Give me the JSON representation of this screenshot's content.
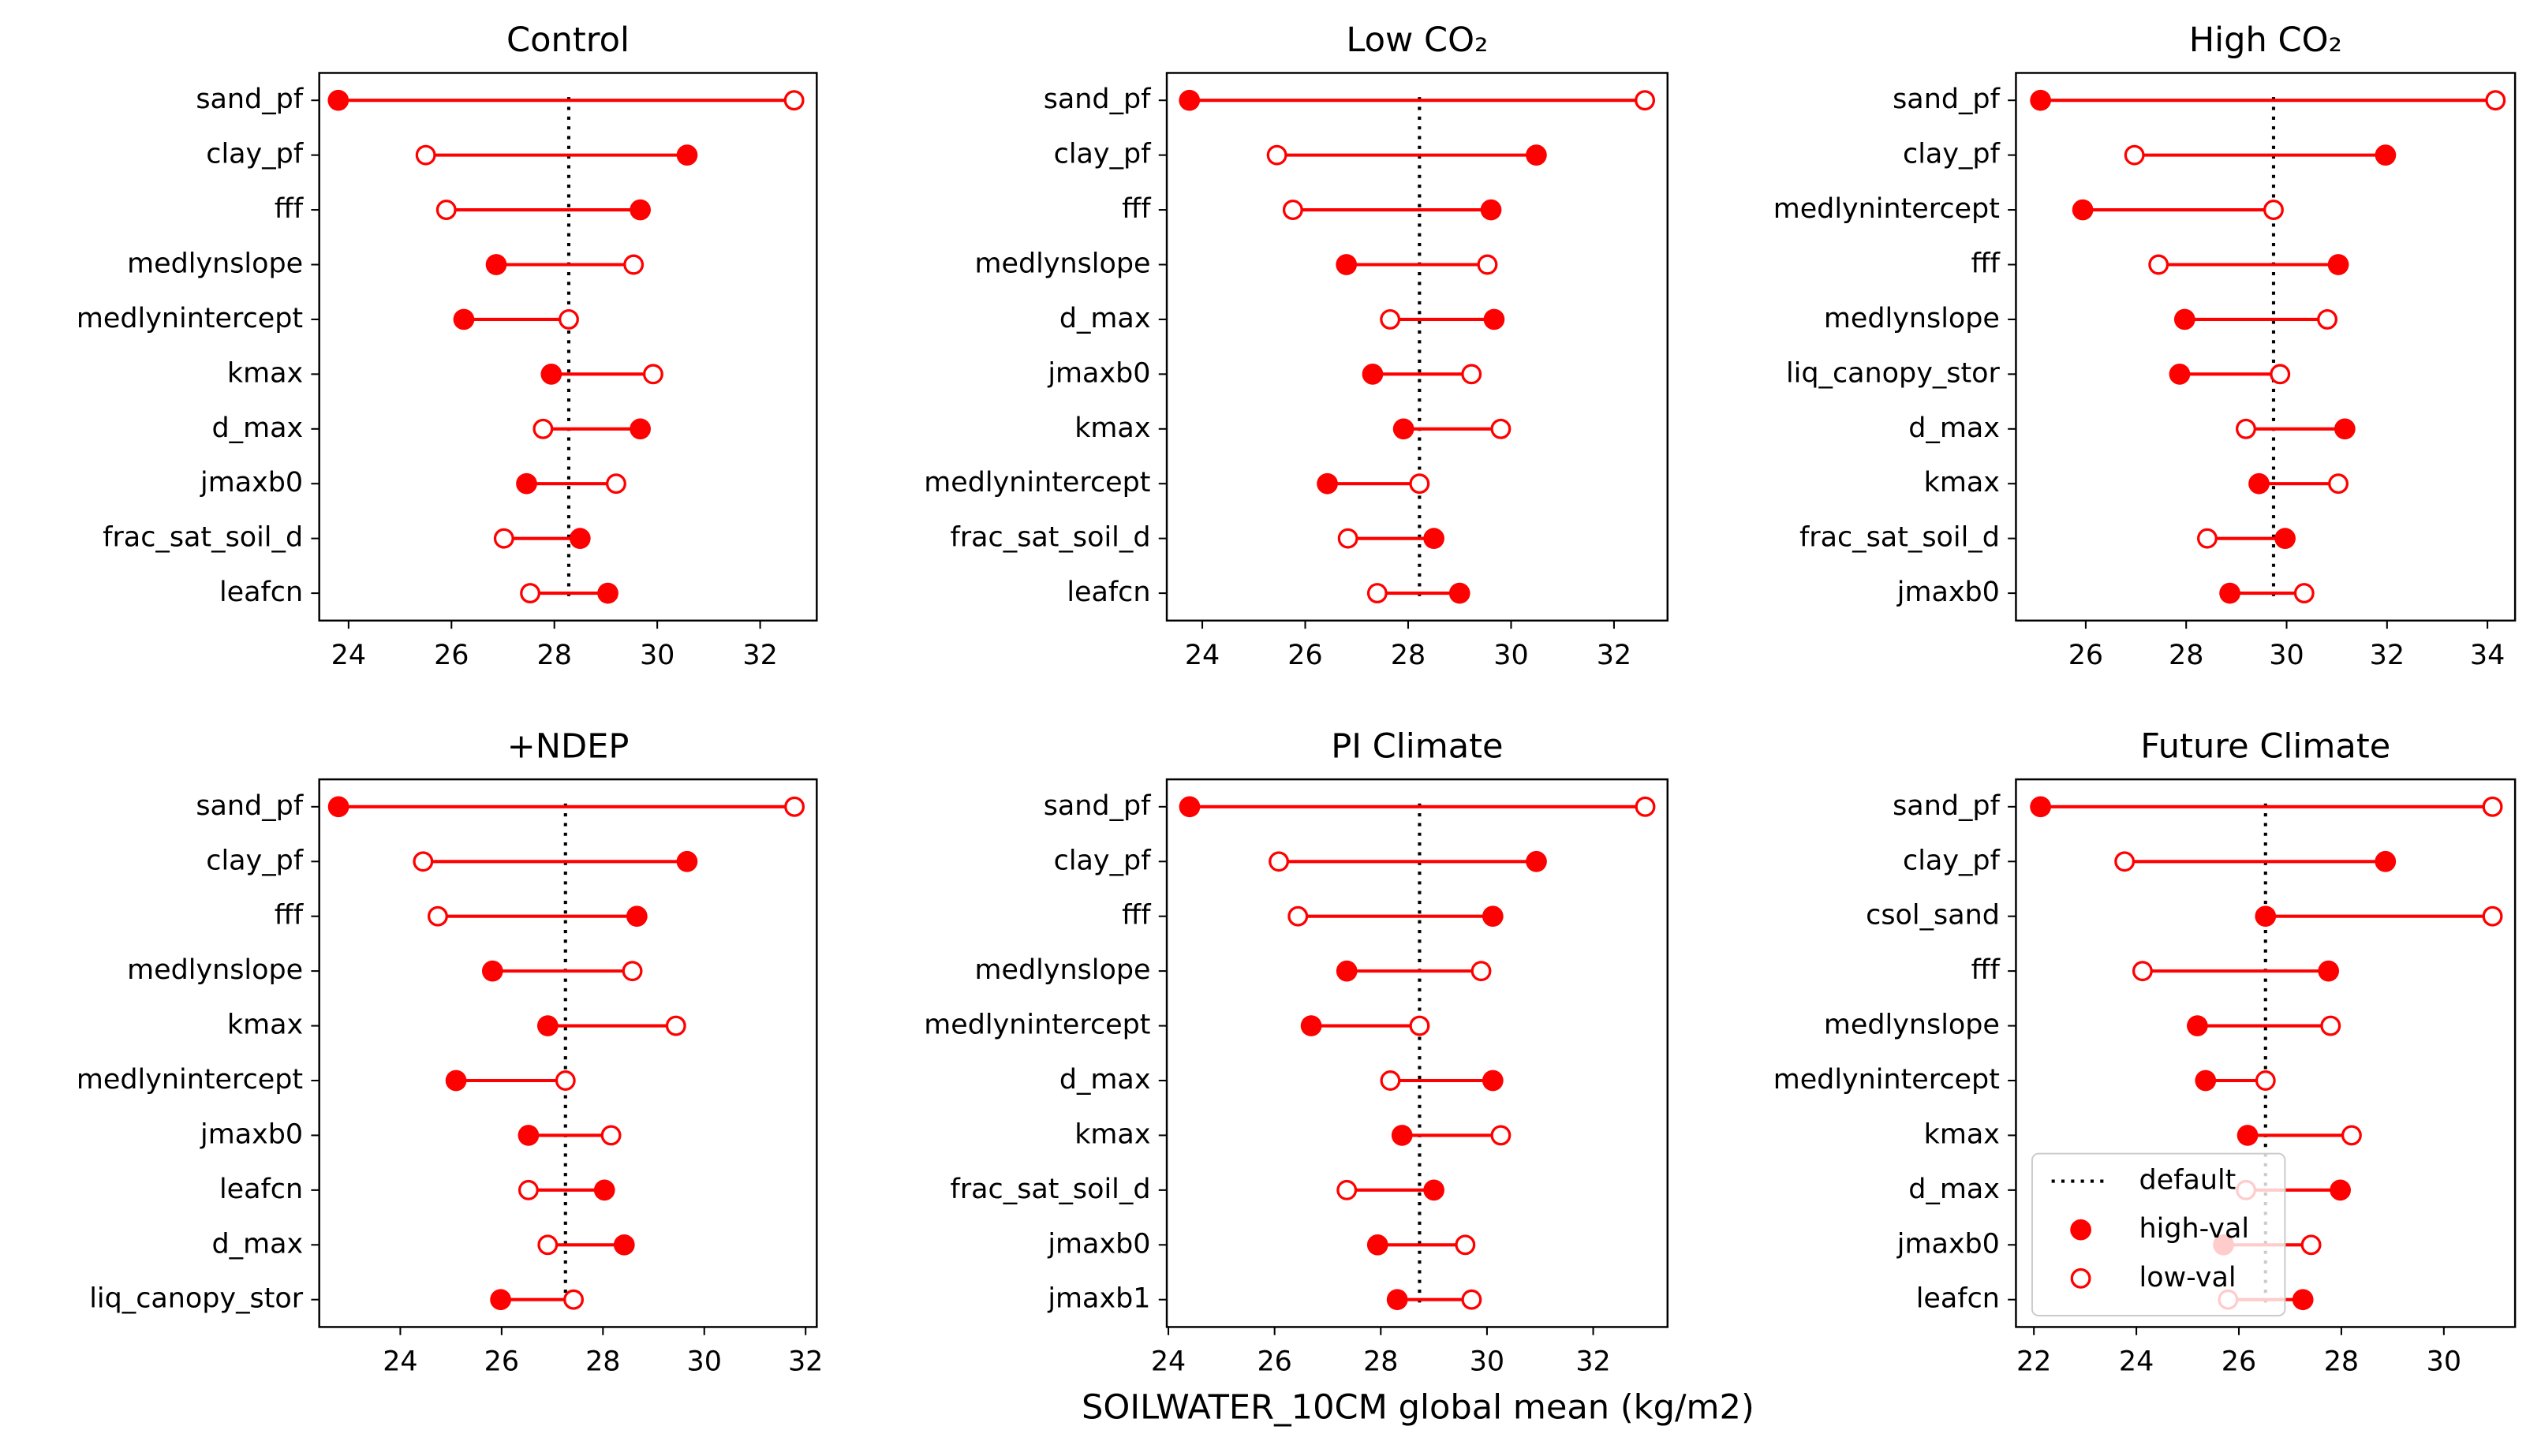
{
  "xlabel": "SOILWATER_10CM global mean (kg/m2)",
  "chart_data": [
    {
      "type": "dumbbell",
      "title": "Control",
      "categories": [
        "sand_pf",
        "clay_pf",
        "fff",
        "medlynslope",
        "medlynintercept",
        "kmax",
        "d_max",
        "jmaxb0",
        "frac_sat_soil_d",
        "leafcn"
      ],
      "series": [
        {
          "color": "#ff0000",
          "marker": "filled",
          "values": [
            23.8,
            30.58,
            29.67,
            26.87,
            26.24,
            27.94,
            29.67,
            27.46,
            28.5,
            29.04
          ]
        },
        {
          "color": "#ff0000",
          "marker": "open",
          "values": [
            32.66,
            25.5,
            25.9,
            29.54,
            28.28,
            29.92,
            27.78,
            29.2,
            27.02,
            27.53
          ]
        }
      ],
      "default": {
        "value": 28.28,
        "color": "#000000"
      },
      "xlim": [
        23.43,
        33.1
      ],
      "xticks": [
        24,
        26,
        28,
        30,
        32
      ]
    },
    {
      "type": "dumbbell",
      "title": "Low CO₂",
      "categories": [
        "sand_pf",
        "clay_pf",
        "fff",
        "medlynslope",
        "d_max",
        "jmaxb0",
        "kmax",
        "medlynintercept",
        "frac_sat_soil_d",
        "leafcn"
      ],
      "series": [
        {
          "color": "#ff0000",
          "marker": "filled",
          "values": [
            23.75,
            30.49,
            29.61,
            26.8,
            29.67,
            27.31,
            27.91,
            26.43,
            28.5,
            29.0
          ]
        },
        {
          "color": "#ff0000",
          "marker": "open",
          "values": [
            32.6,
            25.45,
            25.76,
            29.54,
            27.65,
            29.23,
            29.8,
            28.22,
            26.83,
            27.4
          ]
        }
      ],
      "default": {
        "value": 28.22,
        "color": "#000000"
      },
      "xlim": [
        23.31,
        33.04
      ],
      "xticks": [
        24,
        26,
        28,
        30,
        32
      ]
    },
    {
      "type": "dumbbell",
      "title": "High CO₂",
      "categories": [
        "sand_pf",
        "clay_pf",
        "medlynintercept",
        "fff",
        "medlynslope",
        "liq_canopy_stor",
        "d_max",
        "kmax",
        "frac_sat_soil_d",
        "jmaxb0"
      ],
      "series": [
        {
          "color": "#ff0000",
          "marker": "filled",
          "values": [
            25.1,
            31.97,
            25.94,
            31.03,
            27.97,
            27.87,
            31.16,
            29.45,
            29.97,
            28.87
          ]
        },
        {
          "color": "#ff0000",
          "marker": "open",
          "values": [
            34.16,
            26.97,
            29.74,
            27.45,
            30.81,
            29.87,
            29.19,
            31.03,
            28.42,
            30.35
          ]
        }
      ],
      "default": {
        "value": 29.74,
        "color": "#000000"
      },
      "xlim": [
        24.61,
        34.55
      ],
      "xticks": [
        26,
        28,
        30,
        32,
        34
      ]
    },
    {
      "type": "dumbbell",
      "title": "+NDEP",
      "categories": [
        "sand_pf",
        "clay_pf",
        "fff",
        "medlynslope",
        "kmax",
        "medlynintercept",
        "jmaxb0",
        "leafcn",
        "d_max",
        "liq_canopy_stor"
      ],
      "series": [
        {
          "color": "#ff0000",
          "marker": "filled",
          "values": [
            22.78,
            29.66,
            28.67,
            25.82,
            26.91,
            25.1,
            26.53,
            28.03,
            28.42,
            25.98
          ]
        },
        {
          "color": "#ff0000",
          "marker": "open",
          "values": [
            31.78,
            24.45,
            24.74,
            28.58,
            29.44,
            27.26,
            28.16,
            26.53,
            26.91,
            27.42
          ]
        }
      ],
      "default": {
        "value": 27.26,
        "color": "#000000"
      },
      "xlim": [
        22.4,
        32.22
      ],
      "xticks": [
        24,
        26,
        28,
        30,
        32
      ]
    },
    {
      "type": "dumbbell",
      "title": "PI Climate",
      "categories": [
        "sand_pf",
        "clay_pf",
        "fff",
        "medlynslope",
        "medlynintercept",
        "d_max",
        "kmax",
        "frac_sat_soil_d",
        "jmaxb0",
        "jmaxb1"
      ],
      "series": [
        {
          "color": "#ff0000",
          "marker": "filled",
          "values": [
            24.4,
            30.93,
            30.11,
            27.36,
            26.69,
            30.11,
            28.4,
            29.0,
            27.94,
            28.31
          ]
        },
        {
          "color": "#ff0000",
          "marker": "open",
          "values": [
            32.98,
            26.08,
            26.44,
            29.89,
            28.73,
            28.18,
            30.26,
            27.36,
            29.59,
            29.71
          ]
        }
      ],
      "default": {
        "value": 28.73,
        "color": "#000000"
      },
      "xlim": [
        23.97,
        33.4
      ],
      "xticks": [
        24,
        26,
        28,
        30,
        32
      ]
    },
    {
      "type": "dumbbell",
      "title": "Future Climate",
      "categories": [
        "sand_pf",
        "clay_pf",
        "csol_sand",
        "fff",
        "medlynslope",
        "medlynintercept",
        "kmax",
        "d_max",
        "jmaxb0",
        "leafcn"
      ],
      "series": [
        {
          "name": "high-val",
          "color": "#ff0000",
          "marker": "filled",
          "values": [
            22.13,
            28.86,
            26.52,
            27.75,
            25.19,
            25.35,
            26.17,
            27.98,
            25.7,
            27.25
          ]
        },
        {
          "name": "low-val",
          "color": "#ff0000",
          "marker": "open",
          "values": [
            30.95,
            23.77,
            30.95,
            24.12,
            27.79,
            26.52,
            28.2,
            26.14,
            27.41,
            25.79
          ]
        }
      ],
      "default": {
        "name": "default",
        "value": 26.52,
        "color": "#000000"
      },
      "xlim": [
        21.65,
        31.39
      ],
      "xticks": [
        22,
        24,
        26,
        28,
        30
      ],
      "legend": "lower left"
    }
  ]
}
